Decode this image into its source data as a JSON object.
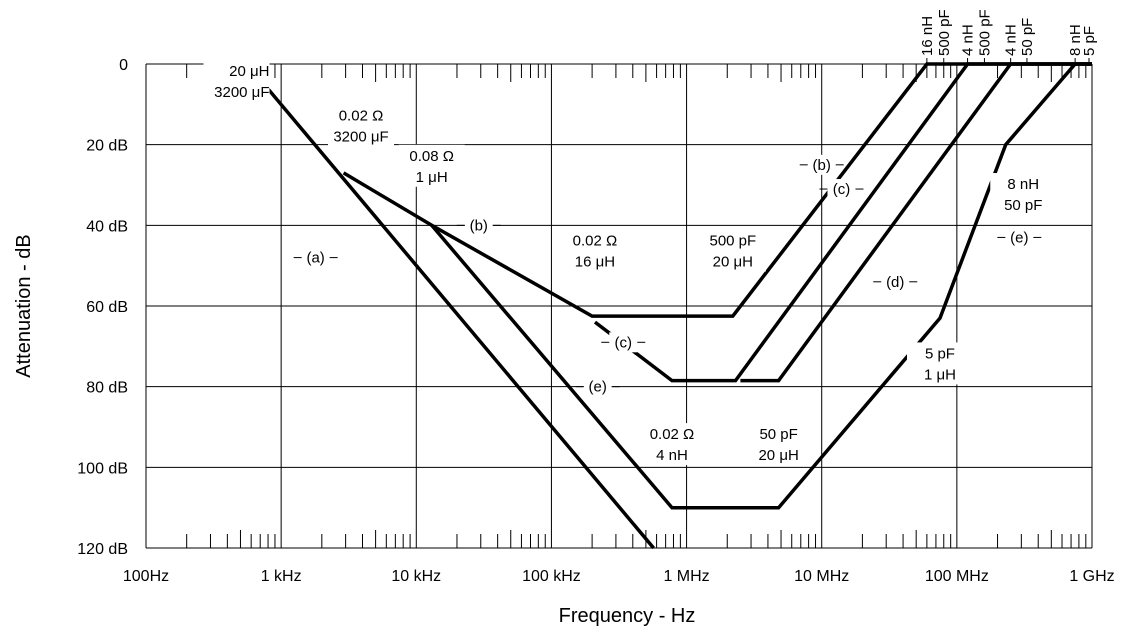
{
  "chart_data": {
    "type": "line",
    "xscale": "log",
    "xlabel": "Frequency - Hz",
    "ylabel": "Attenuation - dB",
    "xlim": [
      100,
      1000000000
    ],
    "ylim": [
      0,
      120
    ],
    "y_inverted": true,
    "grid": true,
    "x_ticks": [
      {
        "value": 100,
        "label": "100Hz"
      },
      {
        "value": 1000,
        "label": "1 kHz"
      },
      {
        "value": 10000,
        "label": "10 kHz"
      },
      {
        "value": 100000,
        "label": "100 kHz"
      },
      {
        "value": 1000000,
        "label": "1 MHz"
      },
      {
        "value": 10000000,
        "label": "10 MHz"
      },
      {
        "value": 100000000,
        "label": "100 MHz"
      },
      {
        "value": 1000000000,
        "label": "1 GHz"
      }
    ],
    "y_ticks": [
      {
        "value": 0,
        "label": "0"
      },
      {
        "value": 20,
        "label": "20 dB"
      },
      {
        "value": 40,
        "label": "40 dB"
      },
      {
        "value": 60,
        "label": "60 dB"
      },
      {
        "value": 80,
        "label": "80 dB"
      },
      {
        "value": 100,
        "label": "100 dB"
      },
      {
        "value": 120,
        "label": "120 dB"
      }
    ],
    "series": [
      {
        "name": "(a)",
        "x": [
          560,
          570000
        ],
        "y": [
          0,
          120
        ],
        "label_at": {
          "x": 1800,
          "y": 48
        }
      },
      {
        "name": "(b)",
        "x": [
          2900,
          13000,
          200000,
          2200000,
          60000000,
          1000000000
        ],
        "y": [
          27,
          40,
          62.5,
          62.5,
          0,
          0
        ],
        "label_at": {
          "x": 29000,
          "y": 40
        },
        "label2_at": {
          "x": 10000000,
          "y": 25
        }
      },
      {
        "name": "(c)",
        "x": [
          210000,
          780000,
          2300000,
          120000000,
          1000000000
        ],
        "y": [
          64,
          78.5,
          78.5,
          0,
          0
        ],
        "label_at": {
          "x": 340000,
          "y": 69
        },
        "label2_at": {
          "x": 14000000,
          "y": 31
        }
      },
      {
        "name": "(d)",
        "x": [
          2500000,
          4800000,
          250000000,
          1000000000
        ],
        "y": [
          78.5,
          78.5,
          0,
          0
        ],
        "label_at": {
          "x": 35000000,
          "y": 54
        }
      },
      {
        "name": "(e)",
        "x": [
          13000,
          780000,
          4800000,
          75000000,
          230000000,
          750000000,
          1000000000
        ],
        "y": [
          40,
          110,
          110,
          63,
          20,
          0,
          0
        ],
        "label_at": {
          "x": 220000,
          "y": 80
        },
        "label2_at": {
          "x": 290000000,
          "y": 43
        }
      }
    ],
    "annotations": [
      {
        "lines": [
          "20 μH",
          "3200 μF"
        ],
        "x": 820,
        "y": 3,
        "anchor": "end"
      },
      {
        "lines": [
          "0.02 Ω",
          "3200 μF"
        ],
        "x": 3900,
        "y": 14,
        "anchor": "middle"
      },
      {
        "lines": [
          "0.08 Ω",
          "1 μH"
        ],
        "x": 13000,
        "y": 24,
        "anchor": "middle"
      },
      {
        "lines": [
          "0.02 Ω",
          "16 μH"
        ],
        "x": 210000,
        "y": 45,
        "anchor": "middle"
      },
      {
        "lines": [
          "500 pF",
          "20 μH"
        ],
        "x": 2200000,
        "y": 45,
        "anchor": "middle"
      },
      {
        "lines": [
          "0.02 Ω",
          "4 nH"
        ],
        "x": 780000,
        "y": 93,
        "anchor": "middle"
      },
      {
        "lines": [
          "50 pF",
          "20 μH"
        ],
        "x": 4800000,
        "y": 93,
        "anchor": "middle"
      },
      {
        "lines": [
          "5 pF",
          "1 μH"
        ],
        "x": 75000000,
        "y": 73,
        "anchor": "middle"
      },
      {
        "lines": [
          "8 nH",
          "50 pF"
        ],
        "x": 310000000,
        "y": 31,
        "anchor": "middle"
      }
    ],
    "top_labels": [
      {
        "text": "16 nH",
        "x": 60000000
      },
      {
        "text": "500 pF",
        "x": 80000000
      },
      {
        "text": "4 nH",
        "x": 120000000
      },
      {
        "text": "500 pF",
        "x": 160000000
      },
      {
        "text": "4 nH",
        "x": 250000000
      },
      {
        "text": "50 pF",
        "x": 330000000
      },
      {
        "text": "8 nH",
        "x": 750000000
      },
      {
        "text": "5 pF",
        "x": 950000000
      }
    ]
  }
}
